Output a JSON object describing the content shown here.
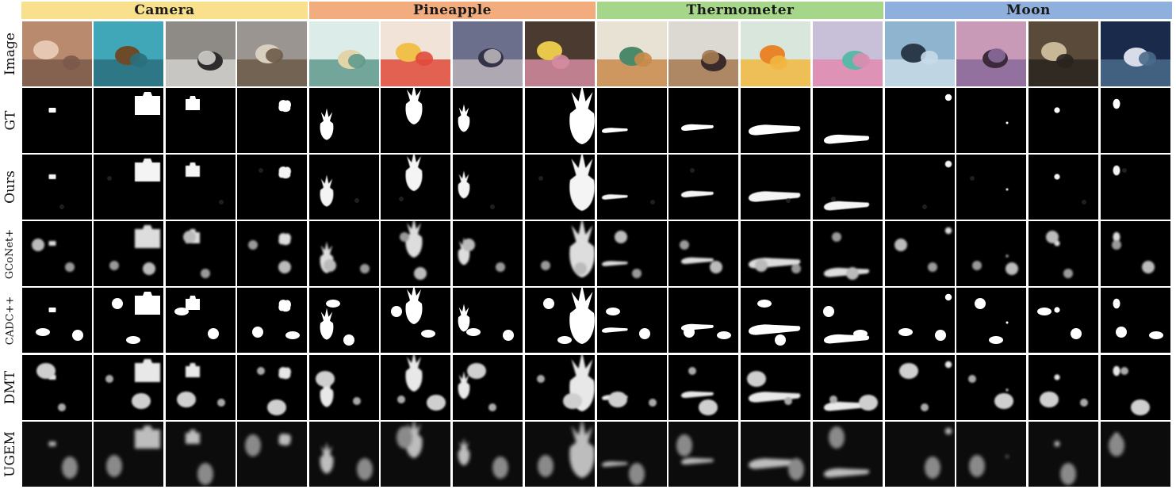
{
  "figure": {
    "categories": [
      {
        "name": "Camera",
        "color": "#f8e08c"
      },
      {
        "name": "Pineapple",
        "color": "#f2ac7e"
      },
      {
        "name": "Thermometer",
        "color": "#a6d68a"
      },
      {
        "name": "Moon",
        "color": "#8fb0dc"
      }
    ],
    "rows": [
      "Image",
      "GT",
      "Ours",
      "GCoNet+",
      "CADC++",
      "DMT",
      "UGEM"
    ],
    "images_per_category": 4
  }
}
